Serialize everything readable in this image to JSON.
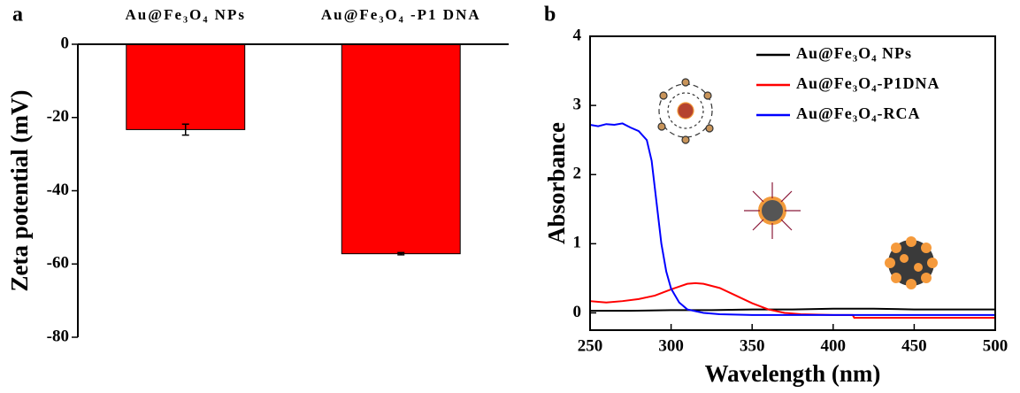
{
  "chart_data": [
    {
      "type": "bar",
      "panel_label": "a",
      "ylabel": "Zeta potential (mV)",
      "categories": [
        "Au@Fe₃O₄ NPs",
        "Au@Fe₃O₄ -P1 DNA"
      ],
      "values": [
        -23.3,
        -57.2
      ],
      "errors": [
        1.5,
        0.3
      ],
      "color": "#ff0000",
      "ylim": [
        -80,
        0
      ],
      "yticks": [
        0,
        -20,
        -40,
        -60,
        -80
      ]
    },
    {
      "type": "line",
      "panel_label": "b",
      "xlabel": "Wavelength (nm)",
      "ylabel": "Absorbance",
      "legend": "upper right",
      "xlim": [
        250,
        500
      ],
      "xticks": [
        250,
        300,
        350,
        400,
        450,
        500
      ],
      "ylim": [
        -0.25,
        4
      ],
      "yticks": [
        0,
        1,
        2,
        3,
        4
      ],
      "series": [
        {
          "name": "Au@Fe₃O₄ NPs",
          "color": "#000000",
          "x": [
            250,
            275,
            300,
            325,
            350,
            375,
            400,
            425,
            450,
            475,
            500
          ],
          "values": [
            0.03,
            0.03,
            0.04,
            0.04,
            0.05,
            0.05,
            0.06,
            0.06,
            0.05,
            0.05,
            0.05
          ]
        },
        {
          "name": "Au@Fe₃O₄-P1DNA",
          "color": "#ff0000",
          "x": [
            250,
            255,
            260,
            270,
            280,
            290,
            300,
            310,
            315,
            320,
            330,
            340,
            350,
            360,
            370,
            380,
            400,
            412,
            413,
            450,
            500
          ],
          "values": [
            0.17,
            0.16,
            0.15,
            0.17,
            0.2,
            0.25,
            0.34,
            0.42,
            0.43,
            0.42,
            0.36,
            0.25,
            0.14,
            0.05,
            0,
            -0.02,
            -0.03,
            -0.03,
            -0.07,
            -0.07,
            -0.07
          ]
        },
        {
          "name": "Au@Fe₃O₄-RCA",
          "color": "#0000ff",
          "x": [
            250,
            255,
            260,
            265,
            270,
            275,
            280,
            285,
            288,
            291,
            294,
            297,
            300,
            305,
            310,
            320,
            330,
            350,
            400,
            450,
            500
          ],
          "values": [
            2.72,
            2.7,
            2.73,
            2.72,
            2.74,
            2.68,
            2.63,
            2.5,
            2.2,
            1.6,
            1.0,
            0.6,
            0.35,
            0.15,
            0.05,
            0.0,
            -0.02,
            -0.03,
            -0.03,
            -0.03,
            -0.03
          ]
        }
      ]
    }
  ]
}
